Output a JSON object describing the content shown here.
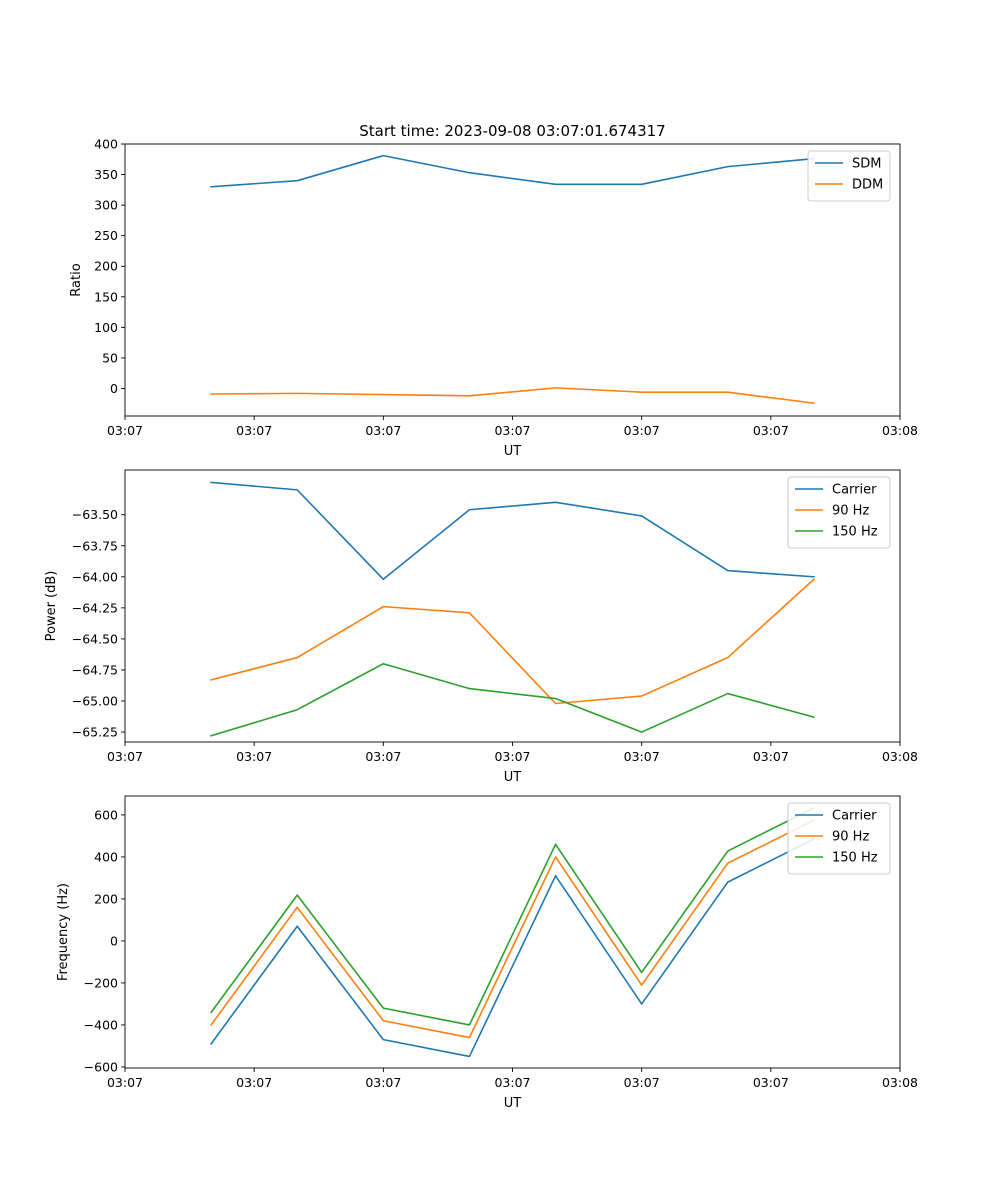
{
  "figure": {
    "title": "Start time: 2023-09-08 03:07:01.674317"
  },
  "chart_data": [
    {
      "type": "line",
      "title": "Start time: 2023-09-08 03:07:01.674317",
      "xlabel": "UT",
      "ylabel": "Ratio",
      "x": [
        0.5,
        1.0,
        1.5,
        2.0,
        2.5,
        3.0,
        3.5,
        4.0
      ],
      "xlim": [
        0,
        4.5
      ],
      "xticks": [
        0,
        0.75,
        1.5,
        2.25,
        3.0,
        3.75,
        4.5
      ],
      "xtick_labels": [
        "03:07",
        "03:07",
        "03:07",
        "03:07",
        "03:07",
        "03:07",
        "03:08"
      ],
      "ylim": [
        -45,
        400
      ],
      "yticks": [
        0,
        50,
        100,
        150,
        200,
        250,
        300,
        350,
        400
      ],
      "ytick_labels": [
        "0",
        "50",
        "100",
        "150",
        "200",
        "250",
        "300",
        "350",
        "400"
      ],
      "legend_position": "top-right",
      "series": [
        {
          "name": "SDM",
          "color": "#1f77b4",
          "values": [
            330,
            340,
            381,
            353,
            334,
            334,
            363,
            376
          ]
        },
        {
          "name": "DDM",
          "color": "#ff7f0e",
          "values": [
            -9,
            -8,
            -10,
            -12,
            1,
            -6,
            -6,
            -24
          ]
        }
      ]
    },
    {
      "type": "line",
      "title": "",
      "xlabel": "UT",
      "ylabel": "Power (dB)",
      "x": [
        0.5,
        1.0,
        1.5,
        2.0,
        2.5,
        3.0,
        3.5,
        4.0
      ],
      "xlim": [
        0,
        4.5
      ],
      "xticks": [
        0,
        0.75,
        1.5,
        2.25,
        3.0,
        3.75,
        4.5
      ],
      "xtick_labels": [
        "03:07",
        "03:07",
        "03:07",
        "03:07",
        "03:07",
        "03:07",
        "03:08"
      ],
      "ylim": [
        -65.33,
        -63.14
      ],
      "yticks": [
        -63.5,
        -63.75,
        -64.0,
        -64.25,
        -64.5,
        -64.75,
        -65.0,
        -65.25
      ],
      "ytick_labels": [
        "−63.50",
        "−63.75",
        "−64.00",
        "−64.25",
        "−64.50",
        "−64.75",
        "−65.00",
        "−65.25"
      ],
      "legend_position": "top-right",
      "series": [
        {
          "name": "Carrier",
          "color": "#1f77b4",
          "values": [
            -63.24,
            -63.3,
            -64.02,
            -63.46,
            -63.4,
            -63.51,
            -63.95,
            -64.0
          ]
        },
        {
          "name": "90 Hz",
          "color": "#ff7f0e",
          "values": [
            -64.83,
            -64.65,
            -64.24,
            -64.29,
            -65.02,
            -64.96,
            -64.65,
            -64.02
          ]
        },
        {
          "name": "150 Hz",
          "color": "#2ca02c",
          "values": [
            -65.28,
            -65.07,
            -64.7,
            -64.9,
            -64.98,
            -65.25,
            -64.94,
            -65.13
          ]
        }
      ]
    },
    {
      "type": "line",
      "title": "",
      "xlabel": "UT",
      "ylabel": "Frequency (Hz)",
      "x": [
        0.5,
        1.0,
        1.5,
        2.0,
        2.5,
        3.0,
        3.5,
        4.0
      ],
      "xlim": [
        0,
        4.5
      ],
      "xticks": [
        0,
        0.75,
        1.5,
        2.25,
        3.0,
        3.75,
        4.5
      ],
      "xtick_labels": [
        "03:07",
        "03:07",
        "03:07",
        "03:07",
        "03:07",
        "03:07",
        "03:08"
      ],
      "ylim": [
        -605,
        690
      ],
      "yticks": [
        600,
        400,
        200,
        0,
        -200,
        -400,
        -600
      ],
      "ytick_labels": [
        "600",
        "400",
        "200",
        "0",
        "−200",
        "−400",
        "−600"
      ],
      "legend_position": "top-right",
      "series": [
        {
          "name": "Carrier",
          "color": "#1f77b4",
          "values": [
            -490,
            70,
            -470,
            -550,
            310,
            -300,
            280,
            485
          ]
        },
        {
          "name": "90 Hz",
          "color": "#ff7f0e",
          "values": [
            -400,
            160,
            -380,
            -460,
            400,
            -210,
            370,
            575
          ]
        },
        {
          "name": "150 Hz",
          "color": "#2ca02c",
          "values": [
            -340,
            218,
            -320,
            -400,
            460,
            -150,
            428,
            633
          ]
        }
      ]
    }
  ]
}
